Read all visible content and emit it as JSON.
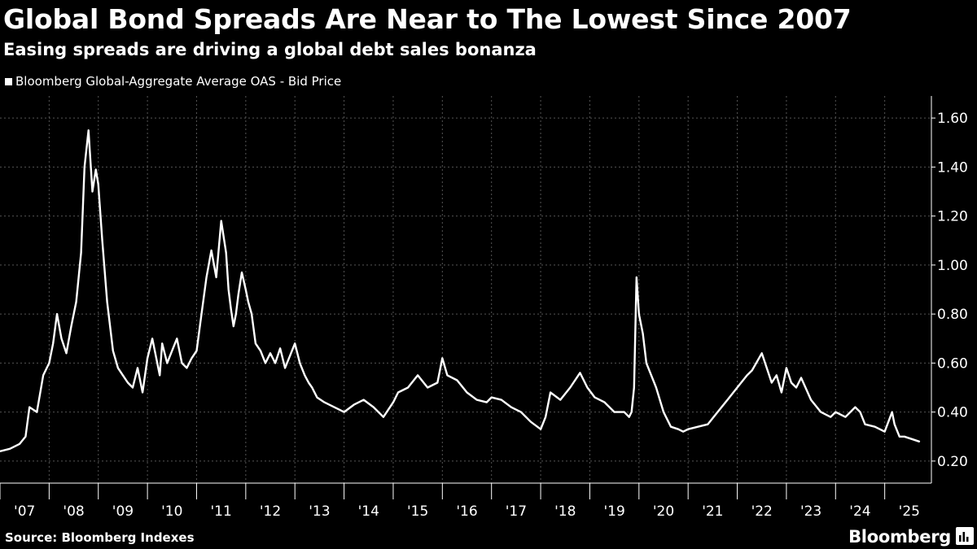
{
  "header": {
    "title": "Global Bond Spreads Are Near to The Lowest Since 2007",
    "subtitle": "Easing spreads are driving a global debt sales bonanza"
  },
  "legend": {
    "label": "Bloomberg Global-Aggregate Average OAS - Bid Price"
  },
  "footer": {
    "source": "Source: Bloomberg Indexes",
    "brand": "Bloomberg"
  },
  "colors": {
    "background": "#000000",
    "line": "#ffffff",
    "grid": "#555555",
    "text": "#ffffff"
  },
  "chart_data": {
    "type": "line",
    "title": "Global Bond Spreads Are Near to The Lowest Since 2007",
    "subtitle": "Easing spreads are driving a global debt sales bonanza",
    "xlabel": "",
    "ylabel": "",
    "x_tick_labels": [
      "'07",
      "'08",
      "'09",
      "'10",
      "'11",
      "'12",
      "'13",
      "'14",
      "'15",
      "'16",
      "'17",
      "'18",
      "'19",
      "'20",
      "'21",
      "'22",
      "'23",
      "'24",
      "'25"
    ],
    "xlim": [
      2007.0,
      2025.95
    ],
    "y_ticks": [
      0.2,
      0.4,
      0.6,
      0.8,
      1.0,
      1.2,
      1.4,
      1.6
    ],
    "y_tick_labels": [
      "0.20",
      "0.40",
      "0.60",
      "0.80",
      "1.00",
      "1.20",
      "1.40",
      "1.60"
    ],
    "ylim": [
      0.11,
      1.69
    ],
    "y_axis_position": "right",
    "grid": true,
    "legend_position": "top-left",
    "series": [
      {
        "name": "Bloomberg Global-Aggregate Average OAS - Bid Price",
        "x": [
          2007.0,
          2007.2,
          2007.4,
          2007.52,
          2007.6,
          2007.75,
          2007.88,
          2008.0,
          2008.08,
          2008.16,
          2008.25,
          2008.35,
          2008.45,
          2008.55,
          2008.65,
          2008.72,
          2008.8,
          2008.88,
          2008.95,
          2009.0,
          2009.08,
          2009.18,
          2009.3,
          2009.4,
          2009.5,
          2009.6,
          2009.7,
          2009.8,
          2009.9,
          2010.0,
          2010.1,
          2010.25,
          2010.3,
          2010.4,
          2010.5,
          2010.6,
          2010.7,
          2010.8,
          2010.9,
          2011.0,
          2011.1,
          2011.2,
          2011.3,
          2011.4,
          2011.5,
          2011.6,
          2011.65,
          2011.7,
          2011.75,
          2011.8,
          2011.85,
          2011.92,
          2012.0,
          2012.05,
          2012.12,
          2012.2,
          2012.3,
          2012.4,
          2012.5,
          2012.6,
          2012.7,
          2012.8,
          2012.9,
          2013.0,
          2013.1,
          2013.2,
          2013.28,
          2013.35,
          2013.45,
          2013.6,
          2013.8,
          2014.0,
          2014.2,
          2014.4,
          2014.6,
          2014.8,
          2015.0,
          2015.1,
          2015.3,
          2015.5,
          2015.7,
          2015.9,
          2016.0,
          2016.1,
          2016.3,
          2016.5,
          2016.7,
          2016.9,
          2017.0,
          2017.2,
          2017.4,
          2017.6,
          2017.8,
          2018.0,
          2018.1,
          2018.2,
          2018.4,
          2018.6,
          2018.8,
          2018.95,
          2019.1,
          2019.3,
          2019.5,
          2019.7,
          2019.8,
          2019.85,
          2019.9,
          2019.95,
          2020.0,
          2020.08,
          2020.15,
          2020.25,
          2020.35,
          2020.5,
          2020.65,
          2020.8,
          2020.9,
          2021.0,
          2021.2,
          2021.4,
          2021.6,
          2021.8,
          2022.0,
          2022.2,
          2022.3,
          2022.5,
          2022.7,
          2022.8,
          2022.9,
          2023.0,
          2023.1,
          2023.2,
          2023.3,
          2023.5,
          2023.7,
          2023.9,
          2024.0,
          2024.2,
          2024.4,
          2024.5,
          2024.6,
          2024.8,
          2025.0,
          2025.15,
          2025.2,
          2025.3,
          2025.4,
          2025.55,
          2025.7
        ],
        "values": [
          0.24,
          0.25,
          0.27,
          0.3,
          0.42,
          0.4,
          0.55,
          0.6,
          0.68,
          0.8,
          0.7,
          0.64,
          0.75,
          0.85,
          1.05,
          1.4,
          1.55,
          1.3,
          1.39,
          1.33,
          1.1,
          0.85,
          0.65,
          0.58,
          0.55,
          0.52,
          0.5,
          0.58,
          0.48,
          0.62,
          0.7,
          0.55,
          0.68,
          0.6,
          0.65,
          0.7,
          0.6,
          0.58,
          0.62,
          0.65,
          0.8,
          0.95,
          1.06,
          0.95,
          1.18,
          1.05,
          0.9,
          0.82,
          0.75,
          0.8,
          0.88,
          0.97,
          0.9,
          0.85,
          0.8,
          0.68,
          0.65,
          0.6,
          0.64,
          0.6,
          0.66,
          0.58,
          0.63,
          0.68,
          0.6,
          0.55,
          0.52,
          0.5,
          0.46,
          0.44,
          0.42,
          0.4,
          0.43,
          0.45,
          0.42,
          0.38,
          0.44,
          0.48,
          0.5,
          0.55,
          0.5,
          0.52,
          0.62,
          0.55,
          0.53,
          0.48,
          0.45,
          0.44,
          0.46,
          0.45,
          0.42,
          0.4,
          0.36,
          0.33,
          0.38,
          0.48,
          0.45,
          0.5,
          0.56,
          0.5,
          0.46,
          0.44,
          0.4,
          0.4,
          0.38,
          0.4,
          0.5,
          0.95,
          0.8,
          0.72,
          0.6,
          0.55,
          0.5,
          0.4,
          0.34,
          0.33,
          0.32,
          0.33,
          0.34,
          0.35,
          0.4,
          0.45,
          0.5,
          0.55,
          0.57,
          0.64,
          0.52,
          0.55,
          0.48,
          0.58,
          0.52,
          0.5,
          0.54,
          0.45,
          0.4,
          0.38,
          0.4,
          0.38,
          0.42,
          0.4,
          0.35,
          0.34,
          0.32,
          0.4,
          0.35,
          0.3,
          0.3,
          0.29,
          0.28
        ]
      }
    ]
  }
}
